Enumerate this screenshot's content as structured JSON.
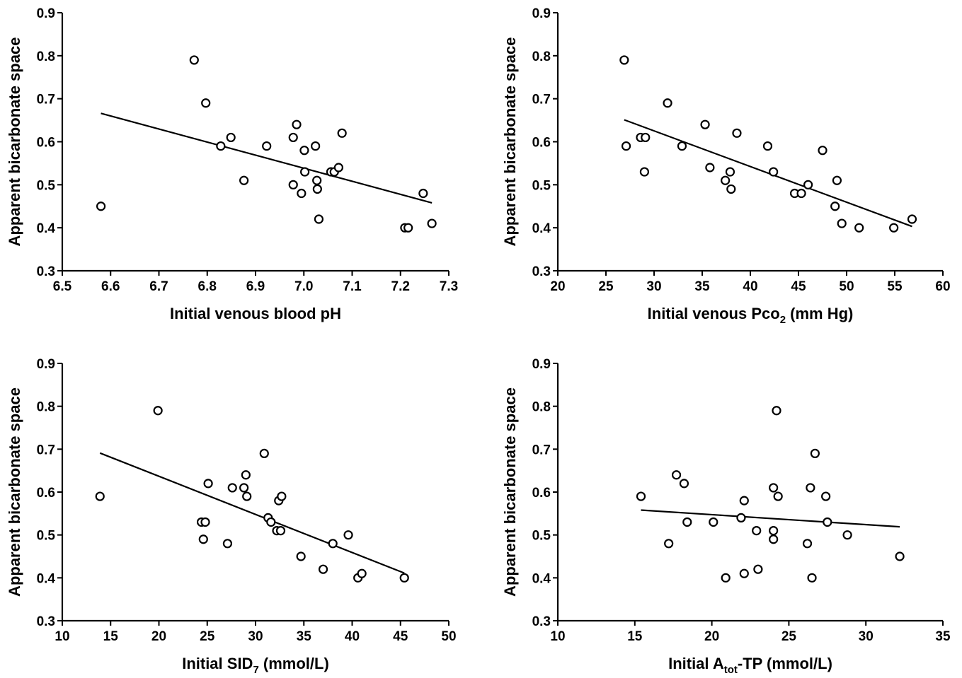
{
  "chart_data": [
    {
      "type": "scatter",
      "xlabel": "Initial venous blood pH",
      "xlabel_parts": [
        {
          "text": "Initial venous blood pH"
        }
      ],
      "ylabel": "Apparent bicarbonate space",
      "xlim": [
        6.5,
        7.3
      ],
      "ylim": [
        0.3,
        0.9
      ],
      "xticks": [
        "6.5",
        "6.6",
        "6.7",
        "6.8",
        "6.9",
        "7.0",
        "7.1",
        "7.2",
        "7.3"
      ],
      "yticks": [
        "0.3",
        "0.4",
        "0.5",
        "0.6",
        "0.7",
        "0.8",
        "0.9"
      ],
      "points": [
        [
          6.58,
          0.45
        ],
        [
          6.773,
          0.79
        ],
        [
          6.797,
          0.69
        ],
        [
          6.828,
          0.59
        ],
        [
          6.849,
          0.61
        ],
        [
          6.876,
          0.51
        ],
        [
          6.923,
          0.59
        ],
        [
          6.978,
          0.61
        ],
        [
          6.985,
          0.64
        ],
        [
          6.978,
          0.5
        ],
        [
          6.995,
          0.48
        ],
        [
          7.001,
          0.58
        ],
        [
          7.002,
          0.53
        ],
        [
          7.024,
          0.59
        ],
        [
          7.027,
          0.51
        ],
        [
          7.028,
          0.49
        ],
        [
          7.031,
          0.42
        ],
        [
          7.056,
          0.53
        ],
        [
          7.063,
          0.53
        ],
        [
          7.072,
          0.54
        ],
        [
          7.079,
          0.62
        ],
        [
          7.209,
          0.4
        ],
        [
          7.216,
          0.4
        ],
        [
          7.247,
          0.48
        ],
        [
          7.265,
          0.41
        ]
      ],
      "fit_line": [
        [
          6.58,
          0.666
        ],
        [
          7.265,
          0.458
        ]
      ]
    },
    {
      "type": "scatter",
      "xlabel": "Initial venous Pco2 (mm Hg)",
      "xlabel_parts": [
        {
          "text": "Initial venous Pco"
        },
        {
          "text": "2",
          "sub": true
        },
        {
          "text": " (mm Hg)"
        }
      ],
      "ylabel": "Apparent bicarbonate space",
      "xlim": [
        20,
        60
      ],
      "ylim": [
        0.3,
        0.9
      ],
      "xticks": [
        "20",
        "25",
        "30",
        "35",
        "40",
        "45",
        "50",
        "55",
        "60"
      ],
      "yticks": [
        "0.3",
        "0.4",
        "0.5",
        "0.6",
        "0.7",
        "0.8",
        "0.9"
      ],
      "points": [
        [
          26.9,
          0.79
        ],
        [
          27.1,
          0.59
        ],
        [
          28.6,
          0.61
        ],
        [
          29.0,
          0.53
        ],
        [
          29.1,
          0.61
        ],
        [
          31.4,
          0.69
        ],
        [
          32.9,
          0.59
        ],
        [
          35.3,
          0.64
        ],
        [
          35.8,
          0.54
        ],
        [
          37.4,
          0.51
        ],
        [
          37.9,
          0.53
        ],
        [
          38.0,
          0.49
        ],
        [
          38.6,
          0.62
        ],
        [
          41.8,
          0.59
        ],
        [
          42.4,
          0.53
        ],
        [
          44.6,
          0.48
        ],
        [
          45.3,
          0.48
        ],
        [
          46.0,
          0.5
        ],
        [
          47.5,
          0.58
        ],
        [
          48.8,
          0.45
        ],
        [
          49.0,
          0.51
        ],
        [
          49.5,
          0.41
        ],
        [
          51.3,
          0.4
        ],
        [
          54.9,
          0.4
        ],
        [
          56.8,
          0.42
        ]
      ],
      "fit_line": [
        [
          26.9,
          0.651
        ],
        [
          56.8,
          0.403
        ]
      ]
    },
    {
      "type": "scatter",
      "xlabel": "Initial SID7 (mmol/L)",
      "xlabel_parts": [
        {
          "text": "Initial SID"
        },
        {
          "text": "7",
          "sub": true
        },
        {
          "text": " (mmol/L)"
        }
      ],
      "ylabel": "Apparent bicarbonate space",
      "xlim": [
        10,
        50
      ],
      "ylim": [
        0.3,
        0.9
      ],
      "xticks": [
        "10",
        "15",
        "20",
        "25",
        "30",
        "35",
        "40",
        "45",
        "50"
      ],
      "yticks": [
        "0.3",
        "0.4",
        "0.5",
        "0.6",
        "0.7",
        "0.8",
        "0.9"
      ],
      "points": [
        [
          13.9,
          0.59
        ],
        [
          19.9,
          0.79
        ],
        [
          24.4,
          0.53
        ],
        [
          24.6,
          0.49
        ],
        [
          24.8,
          0.53
        ],
        [
          25.1,
          0.62
        ],
        [
          27.1,
          0.48
        ],
        [
          27.6,
          0.61
        ],
        [
          28.8,
          0.61
        ],
        [
          29.0,
          0.64
        ],
        [
          29.1,
          0.59
        ],
        [
          30.9,
          0.69
        ],
        [
          31.3,
          0.54
        ],
        [
          31.6,
          0.53
        ],
        [
          32.2,
          0.51
        ],
        [
          32.4,
          0.58
        ],
        [
          32.6,
          0.51
        ],
        [
          32.7,
          0.59
        ],
        [
          34.7,
          0.45
        ],
        [
          37.0,
          0.42
        ],
        [
          38.0,
          0.48
        ],
        [
          39.6,
          0.5
        ],
        [
          40.6,
          0.4
        ],
        [
          41.0,
          0.41
        ],
        [
          45.4,
          0.4
        ]
      ],
      "fit_line": [
        [
          13.9,
          0.691
        ],
        [
          45.4,
          0.411
        ]
      ]
    },
    {
      "type": "scatter",
      "xlabel": "Initial Atot-TP (mmol/L)",
      "xlabel_parts": [
        {
          "text": "Initial A"
        },
        {
          "text": "tot",
          "sub": true
        },
        {
          "text": "-TP (mmol/L)"
        }
      ],
      "ylabel": "Apparent bicarbonate space",
      "xlim": [
        10,
        35
      ],
      "ylim": [
        0.3,
        0.9
      ],
      "xticks": [
        "10",
        "15",
        "20",
        "25",
        "30",
        "35"
      ],
      "yticks": [
        "0.3",
        "0.4",
        "0.5",
        "0.6",
        "0.7",
        "0.8",
        "0.9"
      ],
      "points": [
        [
          15.4,
          0.59
        ],
        [
          17.2,
          0.48
        ],
        [
          17.7,
          0.64
        ],
        [
          18.2,
          0.62
        ],
        [
          18.4,
          0.53
        ],
        [
          20.1,
          0.53
        ],
        [
          20.9,
          0.4
        ],
        [
          21.9,
          0.54
        ],
        [
          22.1,
          0.58
        ],
        [
          22.1,
          0.41
        ],
        [
          22.9,
          0.51
        ],
        [
          23.0,
          0.42
        ],
        [
          24.0,
          0.61
        ],
        [
          24.0,
          0.51
        ],
        [
          24.0,
          0.49
        ],
        [
          24.2,
          0.79
        ],
        [
          24.3,
          0.59
        ],
        [
          26.2,
          0.48
        ],
        [
          26.4,
          0.61
        ],
        [
          26.5,
          0.4
        ],
        [
          26.7,
          0.69
        ],
        [
          27.4,
          0.59
        ],
        [
          27.5,
          0.53
        ],
        [
          28.8,
          0.5
        ],
        [
          32.2,
          0.45
        ]
      ],
      "fit_line": [
        [
          15.4,
          0.558
        ],
        [
          32.2,
          0.519
        ]
      ]
    }
  ]
}
